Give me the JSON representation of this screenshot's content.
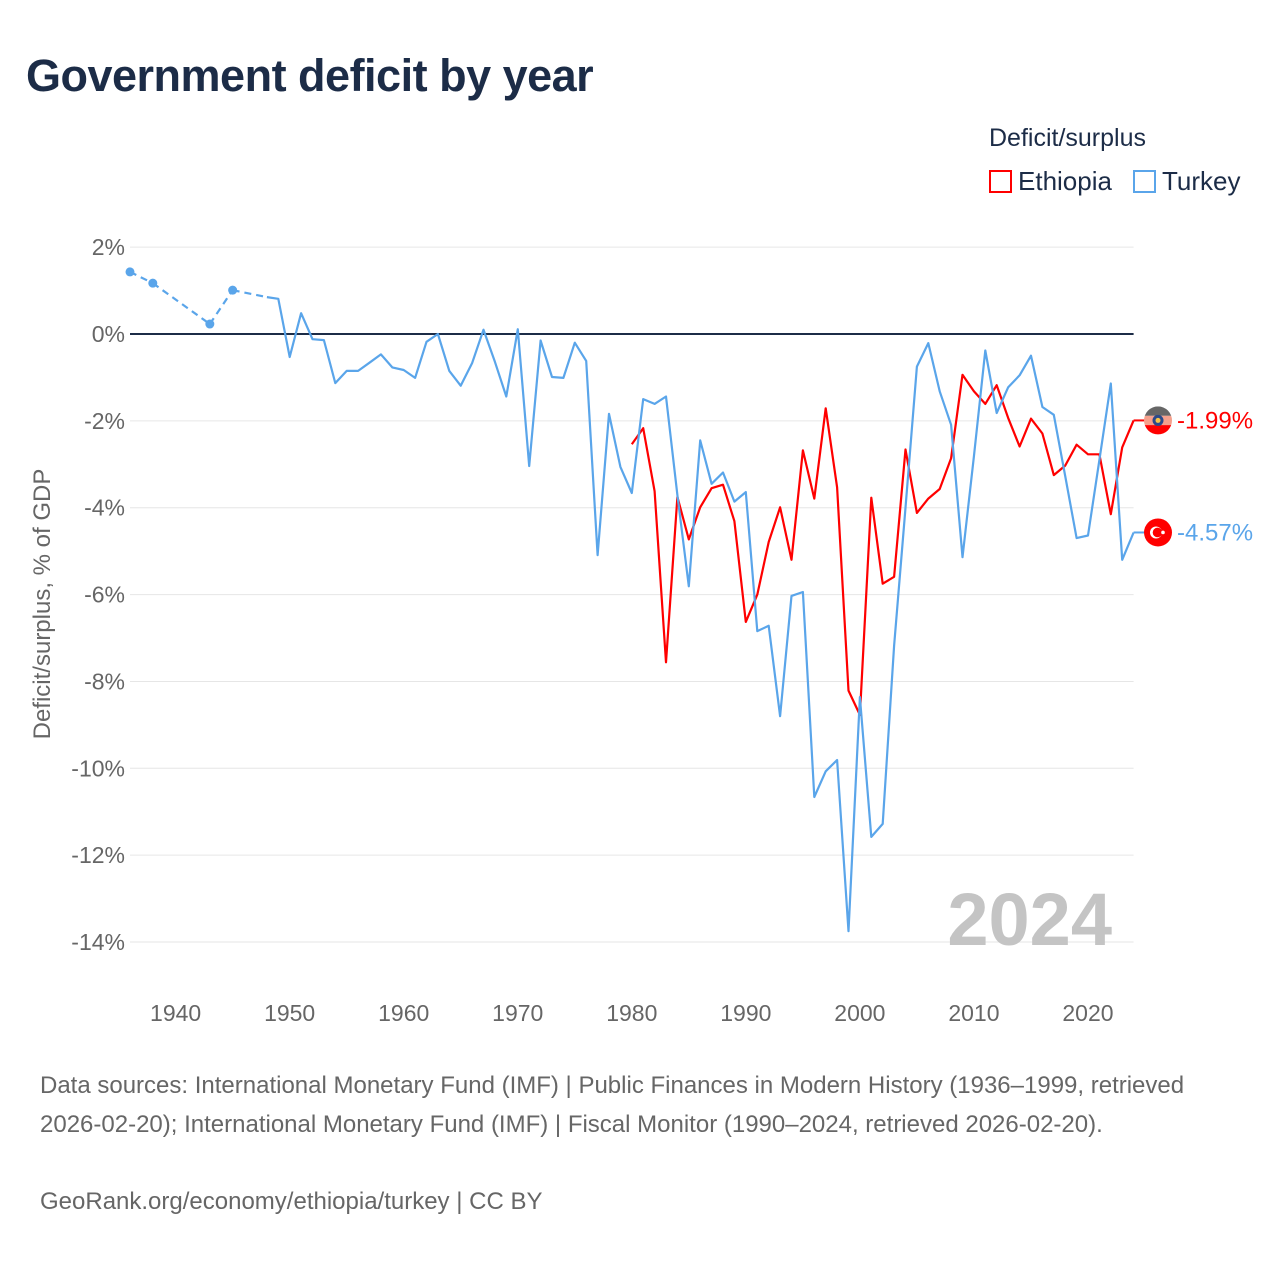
{
  "title": "Government deficit by year",
  "legend": {
    "title": "Deficit/surplus",
    "items": [
      {
        "name": "Ethiopia",
        "color": "#ff0000"
      },
      {
        "name": "Turkey",
        "color": "#5aa5ea"
      }
    ]
  },
  "watermark_year": "2024",
  "footer": {
    "sources": "Data sources: International Monetary Fund (IMF) | Public Finances in Modern History (1936–1999, retrieved 2026-02-20); International Monetary Fund (IMF) | Fiscal Monitor (1990–2024, retrieved 2026-02-20).",
    "credit": "GeoRank.org/economy/ethiopia/turkey | CC BY"
  },
  "chart_data": {
    "type": "line",
    "title": "Government deficit by year",
    "xlabel": "",
    "ylabel": "Deficit/surplus, % of GDP",
    "xlim": [
      1936,
      2024
    ],
    "ylim": [
      -14,
      2
    ],
    "x_ticks": [
      1940,
      1950,
      1960,
      1970,
      1980,
      1990,
      2000,
      2010,
      2020
    ],
    "y_ticks": [
      2,
      0,
      -2,
      -4,
      -6,
      -8,
      -10,
      -12,
      -14
    ],
    "y_tick_labels": [
      "2%",
      "0%",
      "-2%",
      "-4%",
      "-6%",
      "-8%",
      "-10%",
      "-12%",
      "-14%"
    ],
    "grid": true,
    "legend_position": "top-right",
    "series": [
      {
        "name": "Ethiopia",
        "color": "#ff0000",
        "end_label": "-1.99%",
        "flag": "ethiopia-flag",
        "x": [
          1980,
          1981,
          1982,
          1983,
          1984,
          1985,
          1986,
          1987,
          1988,
          1989,
          1990,
          1991,
          1992,
          1993,
          1994,
          1995,
          1996,
          1997,
          1998,
          1999,
          2000,
          2001,
          2002,
          2003,
          2004,
          2005,
          2006,
          2007,
          2008,
          2009,
          2010,
          2011,
          2012,
          2013,
          2014,
          2015,
          2016,
          2017,
          2018,
          2019,
          2020,
          2021,
          2022,
          2023,
          2024
        ],
        "y": [
          -2.54,
          -2.17,
          -3.62,
          -7.56,
          -3.75,
          -4.73,
          -3.99,
          -3.55,
          -3.47,
          -4.31,
          -6.63,
          -6.0,
          -4.79,
          -3.99,
          -5.2,
          -2.68,
          -3.79,
          -1.71,
          -3.53,
          -8.21,
          -8.77,
          -3.77,
          -5.75,
          -5.59,
          -2.66,
          -4.12,
          -3.79,
          -3.57,
          -2.86,
          -0.94,
          -1.32,
          -1.61,
          -1.18,
          -1.93,
          -2.59,
          -1.95,
          -2.29,
          -3.25,
          -3.03,
          -2.55,
          -2.77,
          -2.77,
          -4.15,
          -2.61,
          -1.99
        ]
      },
      {
        "name": "Turkey",
        "color": "#5aa5ea",
        "end_label": "-4.57%",
        "flag": "turkey-flag",
        "x": [
          1936,
          1938,
          1943,
          1945,
          1948,
          1949,
          1950,
          1951,
          1952,
          1953,
          1954,
          1955,
          1956,
          1957,
          1958,
          1959,
          1960,
          1961,
          1962,
          1963,
          1964,
          1965,
          1966,
          1967,
          1968,
          1969,
          1970,
          1971,
          1972,
          1973,
          1974,
          1975,
          1976,
          1977,
          1978,
          1979,
          1980,
          1981,
          1982,
          1983,
          1984,
          1985,
          1986,
          1987,
          1988,
          1989,
          1990,
          1991,
          1992,
          1993,
          1994,
          1995,
          1996,
          1997,
          1998,
          1999,
          2000,
          2001,
          2002,
          2003,
          2004,
          2005,
          2006,
          2007,
          2008,
          2009,
          2010,
          2011,
          2012,
          2013,
          2014,
          2015,
          2016,
          2017,
          2018,
          2019,
          2020,
          2021,
          2022,
          2023,
          2024
        ],
        "y": [
          1.43,
          1.17,
          0.23,
          1.01,
          0.85,
          0.81,
          -0.53,
          0.48,
          -0.12,
          -0.14,
          -1.13,
          -0.85,
          -0.85,
          -0.66,
          -0.47,
          -0.77,
          -0.83,
          -1.01,
          -0.18,
          0.0,
          -0.85,
          -1.19,
          -0.67,
          0.1,
          -0.64,
          -1.44,
          0.11,
          -3.04,
          -0.15,
          -0.99,
          -1.01,
          -0.2,
          -0.62,
          -5.09,
          -1.84,
          -3.06,
          -3.66,
          -1.5,
          -1.61,
          -1.44,
          -3.71,
          -5.81,
          -2.45,
          -3.45,
          -3.19,
          -3.86,
          -3.64,
          -6.84,
          -6.72,
          -8.8,
          -6.03,
          -5.94,
          -10.66,
          -10.07,
          -9.81,
          -13.75,
          -8.36,
          -11.58,
          -11.28,
          -7.18,
          -4.0,
          -0.75,
          -0.21,
          -1.32,
          -2.09,
          -5.14,
          -2.82,
          -0.38,
          -1.82,
          -1.23,
          -0.95,
          -0.5,
          -1.68,
          -1.86,
          -3.27,
          -4.7,
          -4.64,
          -2.9,
          -1.14,
          -5.2,
          -4.57
        ]
      }
    ]
  }
}
